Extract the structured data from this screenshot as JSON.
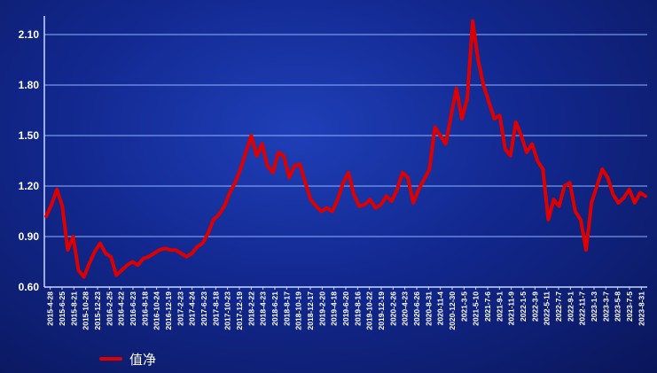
{
  "chart_data": {
    "type": "line",
    "title": "",
    "xlabel": "",
    "ylabel": "",
    "ylim": [
      0.6,
      2.2
    ],
    "yticks": [
      "0.60",
      "0.90",
      "1.20",
      "1.50",
      "1.80",
      "2.10"
    ],
    "grid": true,
    "legend": "bottom-left",
    "colors": {
      "line": "#dd0000",
      "grid": "#8fb4ff",
      "axis": "#c8d8ff"
    },
    "xticks": [
      "2015-4-28",
      "2015-6-25",
      "2015-8-21",
      "2015-10-28",
      "2015-12-23",
      "2016-2-25",
      "2016-4-22",
      "2016-6-23",
      "2016-8-18",
      "2016-10-24",
      "2016-12-19",
      "2017-2-23",
      "2017-4-24",
      "2017-6-23",
      "2017-8-18",
      "2017-10-23",
      "2017-12-19",
      "2018-2-22",
      "2018-4-23",
      "2018-6-21",
      "2018-8-17",
      "2018-10-19",
      "2018-12-17",
      "2019-2-20",
      "2019-4-18",
      "2019-6-20",
      "2019-8-16",
      "2019-10-22",
      "2019-12-19",
      "2020-2-26",
      "2020-4-23",
      "2020-6-26",
      "2020-8-31",
      "2020-11-4",
      "2020-12-30",
      "2021-3-5",
      "2021-5-10",
      "2021-7-6",
      "2021-9-1",
      "2021-11-9",
      "2022-1-5",
      "2022-3-9",
      "2022-5-11",
      "2022-7-7",
      "2022-9-1",
      "2022-11-7",
      "2023-1-3",
      "2023-3-7",
      "2023-5-8",
      "2023-7-5",
      "2023-8-31"
    ],
    "series": [
      {
        "name": "值净",
        "values": [
          1.02,
          1.09,
          1.18,
          1.08,
          0.82,
          0.9,
          0.7,
          0.66,
          0.74,
          0.81,
          0.86,
          0.8,
          0.78,
          0.67,
          0.7,
          0.73,
          0.75,
          0.73,
          0.77,
          0.78,
          0.8,
          0.82,
          0.83,
          0.82,
          0.82,
          0.8,
          0.78,
          0.8,
          0.84,
          0.86,
          0.92,
          1.0,
          1.03,
          1.08,
          1.16,
          1.22,
          1.3,
          1.4,
          1.5,
          1.38,
          1.45,
          1.32,
          1.28,
          1.4,
          1.38,
          1.25,
          1.32,
          1.33,
          1.22,
          1.12,
          1.08,
          1.05,
          1.07,
          1.05,
          1.12,
          1.22,
          1.28,
          1.15,
          1.08,
          1.09,
          1.12,
          1.07,
          1.09,
          1.14,
          1.11,
          1.18,
          1.28,
          1.25,
          1.1,
          1.18,
          1.24,
          1.3,
          1.55,
          1.5,
          1.45,
          1.62,
          1.78,
          1.6,
          1.72,
          2.18,
          1.95,
          1.8,
          1.7,
          1.6,
          1.62,
          1.42,
          1.38,
          1.58,
          1.5,
          1.4,
          1.45,
          1.35,
          1.3,
          1.0,
          1.12,
          1.08,
          1.2,
          1.22,
          1.05,
          1.0,
          0.82,
          1.1,
          1.2,
          1.3,
          1.25,
          1.15,
          1.1,
          1.13,
          1.18,
          1.1,
          1.16,
          1.14
        ]
      }
    ]
  }
}
